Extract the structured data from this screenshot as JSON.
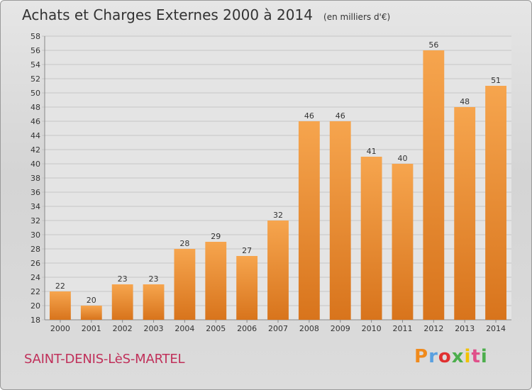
{
  "header": {
    "title": "Achats et Charges Externes 2000 à 2014",
    "unit": "(en milliers d'€)"
  },
  "footer": {
    "commune": "SAINT-DENIS-LèS-MARTEL",
    "brand": "Proxiti",
    "brand_colors": [
      "#f08a1c",
      "#5aa0e0",
      "#e03030",
      "#4cae4c",
      "#f2c200",
      "#e0508a",
      "#4cae4c"
    ]
  },
  "colors": {
    "bar_light": "#f6a54e",
    "bar_dark": "#d8741c",
    "grid": "#c6c6c6",
    "title": "#333333",
    "commune": "#c0305a"
  },
  "chart_data": {
    "type": "bar",
    "categories": [
      "2000",
      "2001",
      "2002",
      "2003",
      "2004",
      "2005",
      "2006",
      "2007",
      "2008",
      "2009",
      "2010",
      "2011",
      "2012",
      "2013",
      "2014"
    ],
    "values": [
      22,
      20,
      23,
      23,
      28,
      29,
      27,
      32,
      46,
      46,
      41,
      40,
      56,
      48,
      51
    ],
    "title": "Achats et Charges Externes 2000 à 2014",
    "ylim": [
      18,
      58
    ],
    "ytick_step": 2,
    "grid": true,
    "data_labels": true
  }
}
